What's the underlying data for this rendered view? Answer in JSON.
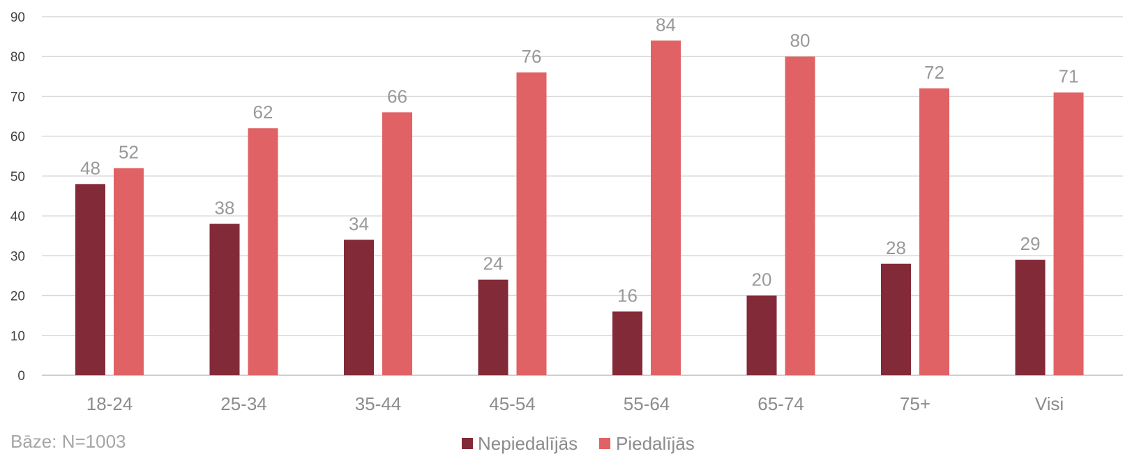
{
  "chart_data": {
    "type": "bar",
    "categories": [
      "18-24",
      "25-34",
      "35-44",
      "45-54",
      "55-64",
      "65-74",
      "75+",
      "Visi"
    ],
    "series": [
      {
        "name": "Nepiedalījās",
        "color": "#832a38",
        "values": [
          48,
          38,
          34,
          24,
          16,
          20,
          28,
          29
        ]
      },
      {
        "name": "Piedalījās",
        "color": "#e06264",
        "values": [
          52,
          62,
          66,
          76,
          84,
          80,
          72,
          71
        ]
      }
    ],
    "ylim": [
      0,
      90
    ],
    "yticks": [
      0,
      10,
      20,
      30,
      40,
      50,
      60,
      70,
      80,
      90
    ],
    "grid": true,
    "legend": "bottom-center",
    "note": "Bāze: N=1003"
  }
}
